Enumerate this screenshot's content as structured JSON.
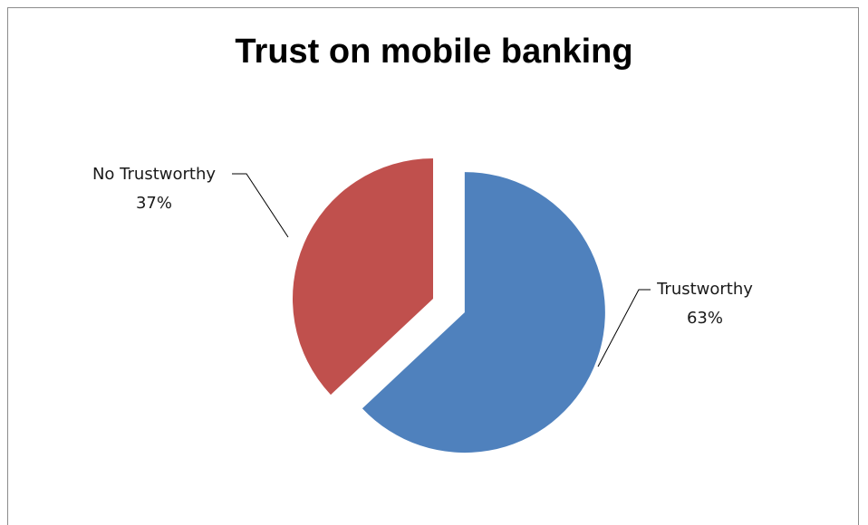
{
  "chart_data": {
    "type": "pie",
    "title": "Trust on mobile banking",
    "slices": [
      {
        "name": "Trustworthy",
        "percent_label": "63%",
        "value": 63,
        "color": "#4f81bd",
        "exploded": true
      },
      {
        "name": "No Trustworthy",
        "percent_label": "37%",
        "value": 37,
        "color": "#c0504d",
        "exploded": false
      }
    ],
    "start_angle_deg": 0,
    "direction": "clockwise",
    "legend": "none",
    "data_labels": "outside with leader lines"
  }
}
